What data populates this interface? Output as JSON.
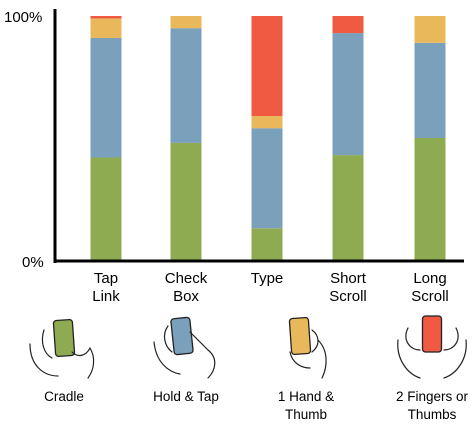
{
  "chart_data": {
    "type": "bar",
    "stacked": true,
    "ylim": [
      0,
      100
    ],
    "ytick_labels": [
      "0%",
      "100%"
    ],
    "categories": [
      {
        "label": [
          "Tap",
          "Link"
        ]
      },
      {
        "label": [
          "Check",
          "Box"
        ]
      },
      {
        "label": [
          "Type"
        ]
      },
      {
        "label": [
          "Short",
          "Scroll"
        ]
      },
      {
        "label": [
          "Long",
          "Scroll"
        ]
      }
    ],
    "series": [
      {
        "color": "#8fab52",
        "values": [
          42,
          48,
          13,
          43,
          50
        ]
      },
      {
        "color": "#7aa0bc",
        "values": [
          49,
          47,
          41,
          50,
          39
        ]
      },
      {
        "color": "#e8b85a",
        "values": [
          8,
          5,
          5,
          0,
          11
        ]
      },
      {
        "color": "#f05a43",
        "values": [
          1,
          0,
          41,
          7,
          0
        ]
      }
    ],
    "grid": false,
    "legend": {
      "placement": "bottom",
      "entries": [
        {
          "label": [
            "Cradle"
          ],
          "color": "#8fab52",
          "icon": "cradle-grip-icon"
        },
        {
          "label": [
            "Hold & Tap"
          ],
          "color": "#7aa0bc",
          "icon": "hold-and-tap-grip-icon"
        },
        {
          "label": [
            "1 Hand &",
            "Thumb"
          ],
          "color": "#e8b85a",
          "icon": "one-hand-thumb-grip-icon"
        },
        {
          "label": [
            "2 Fingers or",
            "Thumbs"
          ],
          "color": "#f05a43",
          "icon": "two-thumbs-grip-icon"
        }
      ]
    }
  }
}
